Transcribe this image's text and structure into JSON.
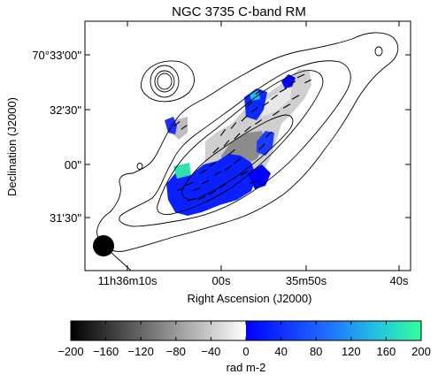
{
  "chart_data": {
    "type": "heatmap",
    "title": "NGC 3735   C-band   RM",
    "xlabel": "Right Ascension (J2000)",
    "ylabel": "Declination (J2000)",
    "x_ticks": [
      "11h36m10s",
      "00s",
      "35m50s",
      "40s"
    ],
    "y_ticks": [
      "70°33'00\"",
      "32'30\"",
      "00\"",
      "31'30\""
    ],
    "colorbar": {
      "label": "rad m-2",
      "range": [
        -200,
        200
      ],
      "ticks": [
        "−200",
        "−160",
        "−120",
        "−80",
        "−40",
        "0",
        "40",
        "80",
        "120",
        "160",
        "200"
      ],
      "negative_colormap": "grayscale",
      "positive_colormap": "blue-to-cyan-to-green"
    },
    "overlays": [
      "total-intensity contours",
      "magnetic field vectors",
      "beam ellipse"
    ],
    "colors": {
      "negative_low": "#000000",
      "negative_high": "#ffffff",
      "positive_low": "#0000ff",
      "positive_mid": "#2277ff",
      "positive_high": "#33ff99"
    }
  }
}
